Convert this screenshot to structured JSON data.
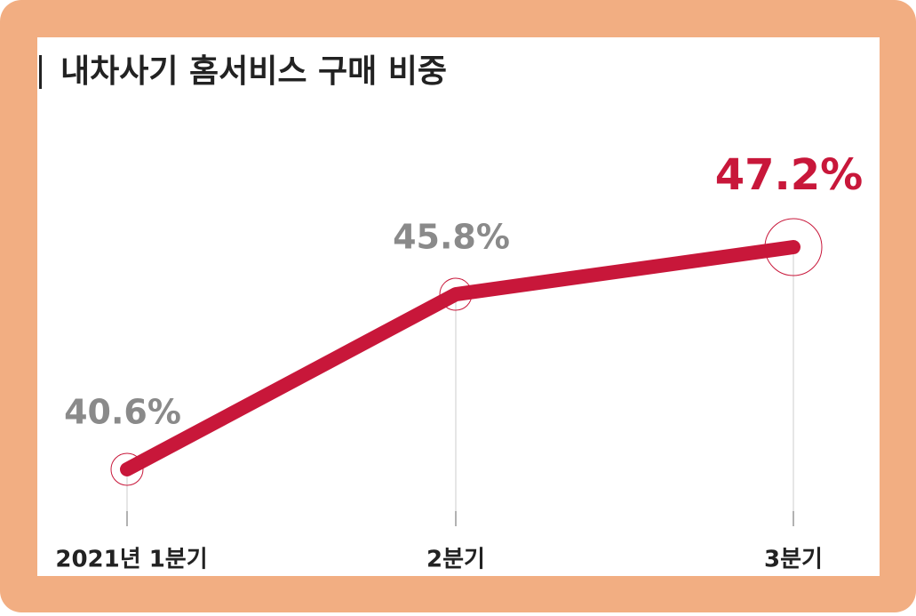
{
  "chart_data": {
    "type": "line",
    "title": "내차사기 홈서비스 구매 비중",
    "categories": [
      "2021년 1분기",
      "2분기",
      "3분기"
    ],
    "series": [
      {
        "name": null,
        "color": "#c8173a",
        "values": [
          40.6,
          45.8,
          47.2
        ],
        "value_labels": [
          "40.6%",
          "45.8%",
          "47.2%"
        ]
      }
    ]
  }
}
